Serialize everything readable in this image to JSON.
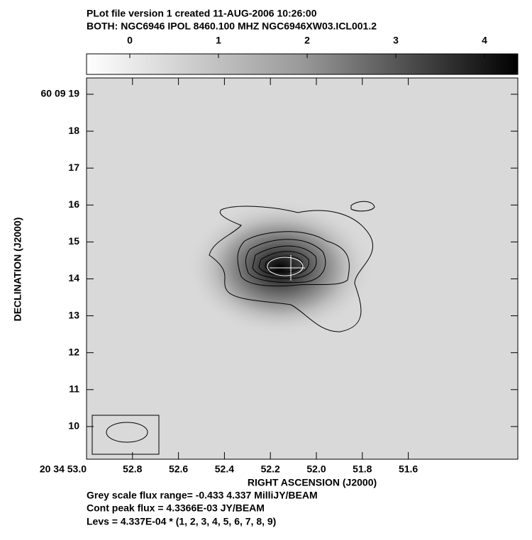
{
  "header": {
    "line1": "PLot file version 1  created 11-AUG-2006 10:26:00",
    "line2": "BOTH: NGC6946  IPOL  8460.100 MHZ  NGC6946XW03.ICL001.2"
  },
  "colorbar": {
    "ticks": [
      "0",
      "1",
      "2",
      "3",
      "4"
    ]
  },
  "plot": {
    "y_label": "DECLINATION (J2000)",
    "x_label": "RIGHT ASCENSION (J2000)",
    "y_ticks": [
      "60 09 19",
      "18",
      "17",
      "16",
      "15",
      "14",
      "13",
      "12",
      "11",
      "10"
    ],
    "x_ticks": [
      "20 34 53.0",
      "52.8",
      "52.6",
      "52.4",
      "52.2",
      "52.0",
      "51.8",
      "51.6"
    ]
  },
  "footer": {
    "line1": "Grey scale flux range= -0.433 4.337 MilliJY/BEAM",
    "line2": "Cont peak flux =  4.3366E-03 JY/BEAM",
    "line3": "Levs = 4.337E-04 * (1, 2, 3, 4, 5, 6, 7, 8, 9)"
  }
}
